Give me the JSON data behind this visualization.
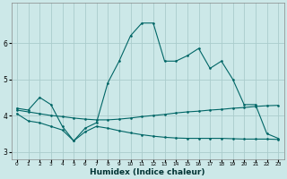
{
  "xlabel": "Humidex (Indice chaleur)",
  "bg_color": "#cce8e8",
  "grid_color": "#aacccc",
  "line_color": "#006666",
  "xlim": [
    -0.5,
    23.5
  ],
  "ylim": [
    2.8,
    7.1
  ],
  "yticks": [
    3,
    4,
    5,
    6
  ],
  "xticks": [
    0,
    1,
    2,
    3,
    4,
    5,
    6,
    7,
    8,
    9,
    10,
    11,
    12,
    13,
    14,
    15,
    16,
    17,
    18,
    19,
    20,
    21,
    22,
    23
  ],
  "series1_x": [
    0,
    1,
    2,
    3,
    4,
    5,
    6,
    7,
    8,
    9,
    10,
    11,
    12,
    13,
    14,
    15,
    16,
    17,
    18,
    19,
    20,
    21,
    22,
    23
  ],
  "series1_y": [
    4.15,
    4.1,
    4.05,
    4.0,
    3.97,
    3.93,
    3.9,
    3.88,
    3.88,
    3.9,
    3.93,
    3.97,
    4.0,
    4.03,
    4.07,
    4.1,
    4.12,
    4.15,
    4.17,
    4.2,
    4.22,
    4.25,
    4.27,
    4.28
  ],
  "series2_x": [
    0,
    1,
    2,
    3,
    4,
    5,
    6,
    7,
    8,
    9,
    10,
    11,
    12,
    13,
    14,
    15,
    16,
    17,
    18,
    19,
    20,
    21,
    22,
    23
  ],
  "series2_y": [
    4.05,
    3.85,
    3.8,
    3.7,
    3.6,
    3.3,
    3.55,
    3.7,
    3.65,
    3.58,
    3.52,
    3.47,
    3.43,
    3.4,
    3.38,
    3.37,
    3.37,
    3.37,
    3.37,
    3.36,
    3.35,
    3.35,
    3.35,
    3.34
  ],
  "series3_x": [
    0,
    1,
    2,
    3,
    4,
    5,
    6,
    7,
    8,
    9,
    10,
    11,
    12,
    13,
    14,
    15,
    16,
    17,
    18,
    19,
    20,
    21,
    22,
    23
  ],
  "series3_y": [
    4.2,
    4.15,
    4.5,
    4.3,
    3.7,
    3.3,
    3.65,
    3.8,
    4.9,
    5.5,
    6.2,
    6.55,
    6.55,
    5.5,
    5.5,
    5.65,
    5.85,
    5.3,
    5.5,
    5.0,
    4.3,
    4.3,
    3.5,
    3.37
  ]
}
